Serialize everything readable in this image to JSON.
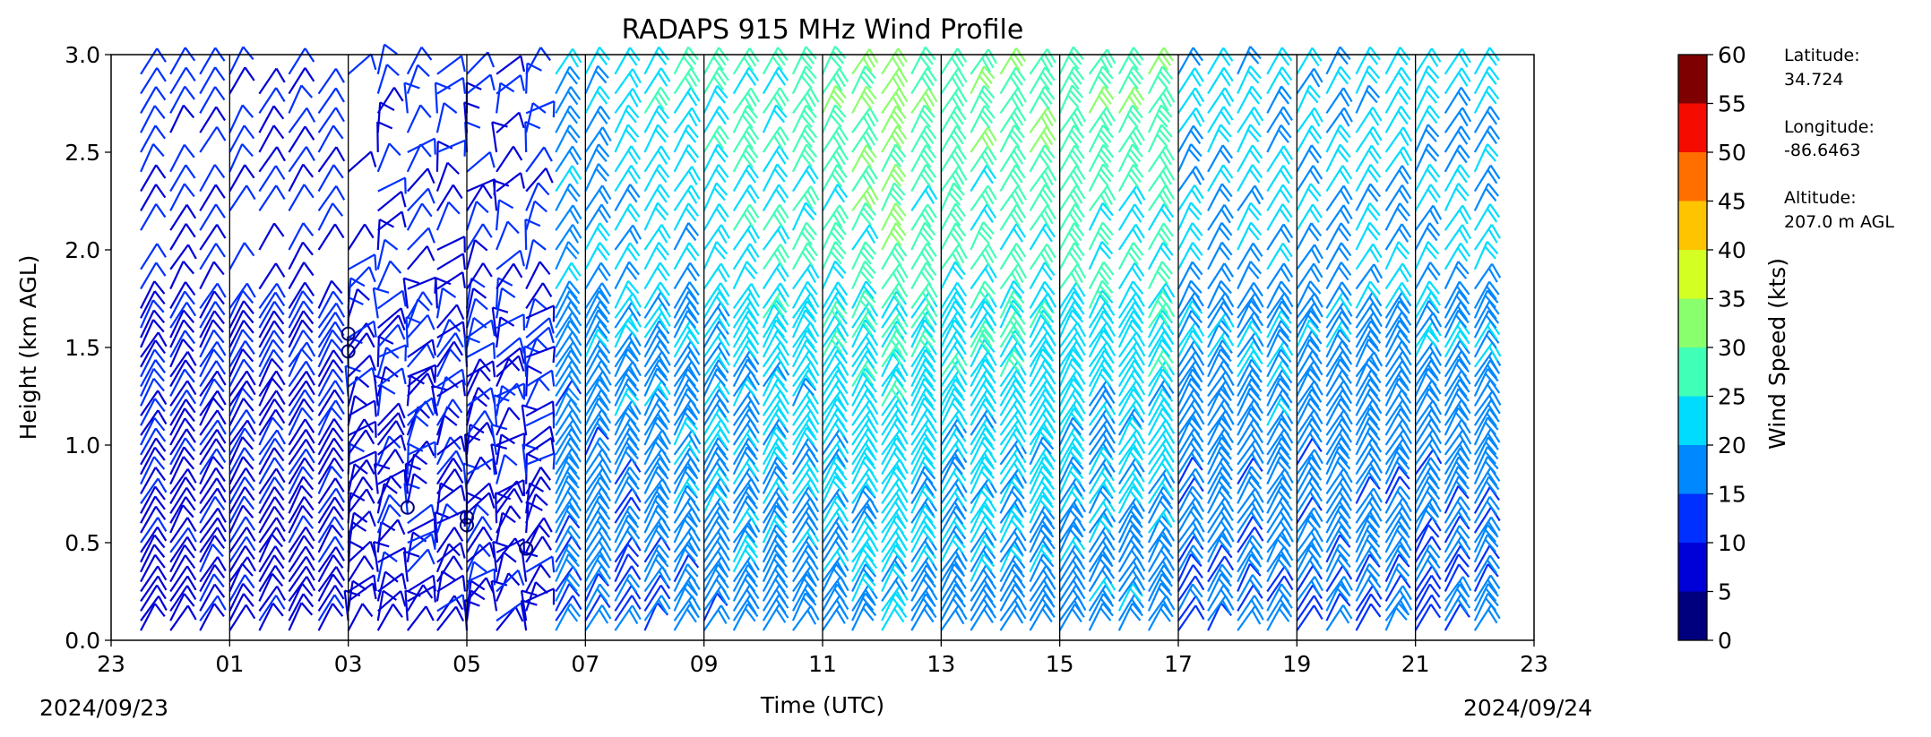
{
  "chart_data": {
    "type": "wind_barbs",
    "title": "RADAPS 915 MHz Wind Profile",
    "xlabel": "Time (UTC)",
    "ylabel": "Height (km AGL)",
    "x_ticks": [
      "23",
      "01",
      "03",
      "05",
      "07",
      "09",
      "11",
      "13",
      "15",
      "17",
      "19",
      "21",
      "23"
    ],
    "x_range_hours": [
      23,
      47
    ],
    "date_start": "2024/09/23",
    "date_end": "2024/09/24",
    "y_ticks": [
      "0.0",
      "0.5",
      "1.0",
      "1.5",
      "2.0",
      "2.5",
      "3.0"
    ],
    "ylim": [
      0.0,
      3.0
    ],
    "colorbar": {
      "label": "Wind Speed (kts)",
      "ticks": [
        "0",
        "5",
        "10",
        "15",
        "20",
        "25",
        "30",
        "35",
        "40",
        "45",
        "50",
        "55",
        "60"
      ],
      "colors": [
        "#00007f",
        "#0000d8",
        "#0030ff",
        "#0088ff",
        "#00dcfe",
        "#40ffb6",
        "#8aff6d",
        "#d4ff23",
        "#ffc400",
        "#ff6f00",
        "#f50b00",
        "#7f0000"
      ]
    },
    "site_info": {
      "latitude_label": "Latitude:",
      "latitude": "34.724",
      "longitude_label": "Longitude:",
      "longitude": "-86.6463",
      "altitude_label": "Altitude:",
      "altitude": "207.0 m AGL"
    },
    "profiles_per_hour": 2,
    "profile_hours": [
      23.5,
      24,
      24.5,
      25,
      25.5,
      26,
      26.5,
      27,
      27.5,
      28,
      28.5,
      29,
      29.5,
      30,
      30.5,
      31,
      31.5,
      32,
      32.5,
      33,
      33.5,
      34,
      34.5,
      35,
      35.5,
      36,
      36.5,
      37,
      37.5,
      38,
      38.5,
      39,
      39.5,
      40,
      40.5,
      41,
      41.5,
      42,
      42.5,
      43,
      43.5,
      44,
      44.5,
      45,
      45.5,
      46
    ],
    "wind_speed_trend_kts": {
      "lower_levels": "5-15 kts early, increasing to 15-25 kts after 09 UTC",
      "upper_levels": "10-15 kts early, 25-35 kts between 11 and 17 UTC, 20-25 kts late"
    },
    "calm_markers_hours": [
      27,
      27,
      28,
      29,
      29,
      30
    ]
  }
}
